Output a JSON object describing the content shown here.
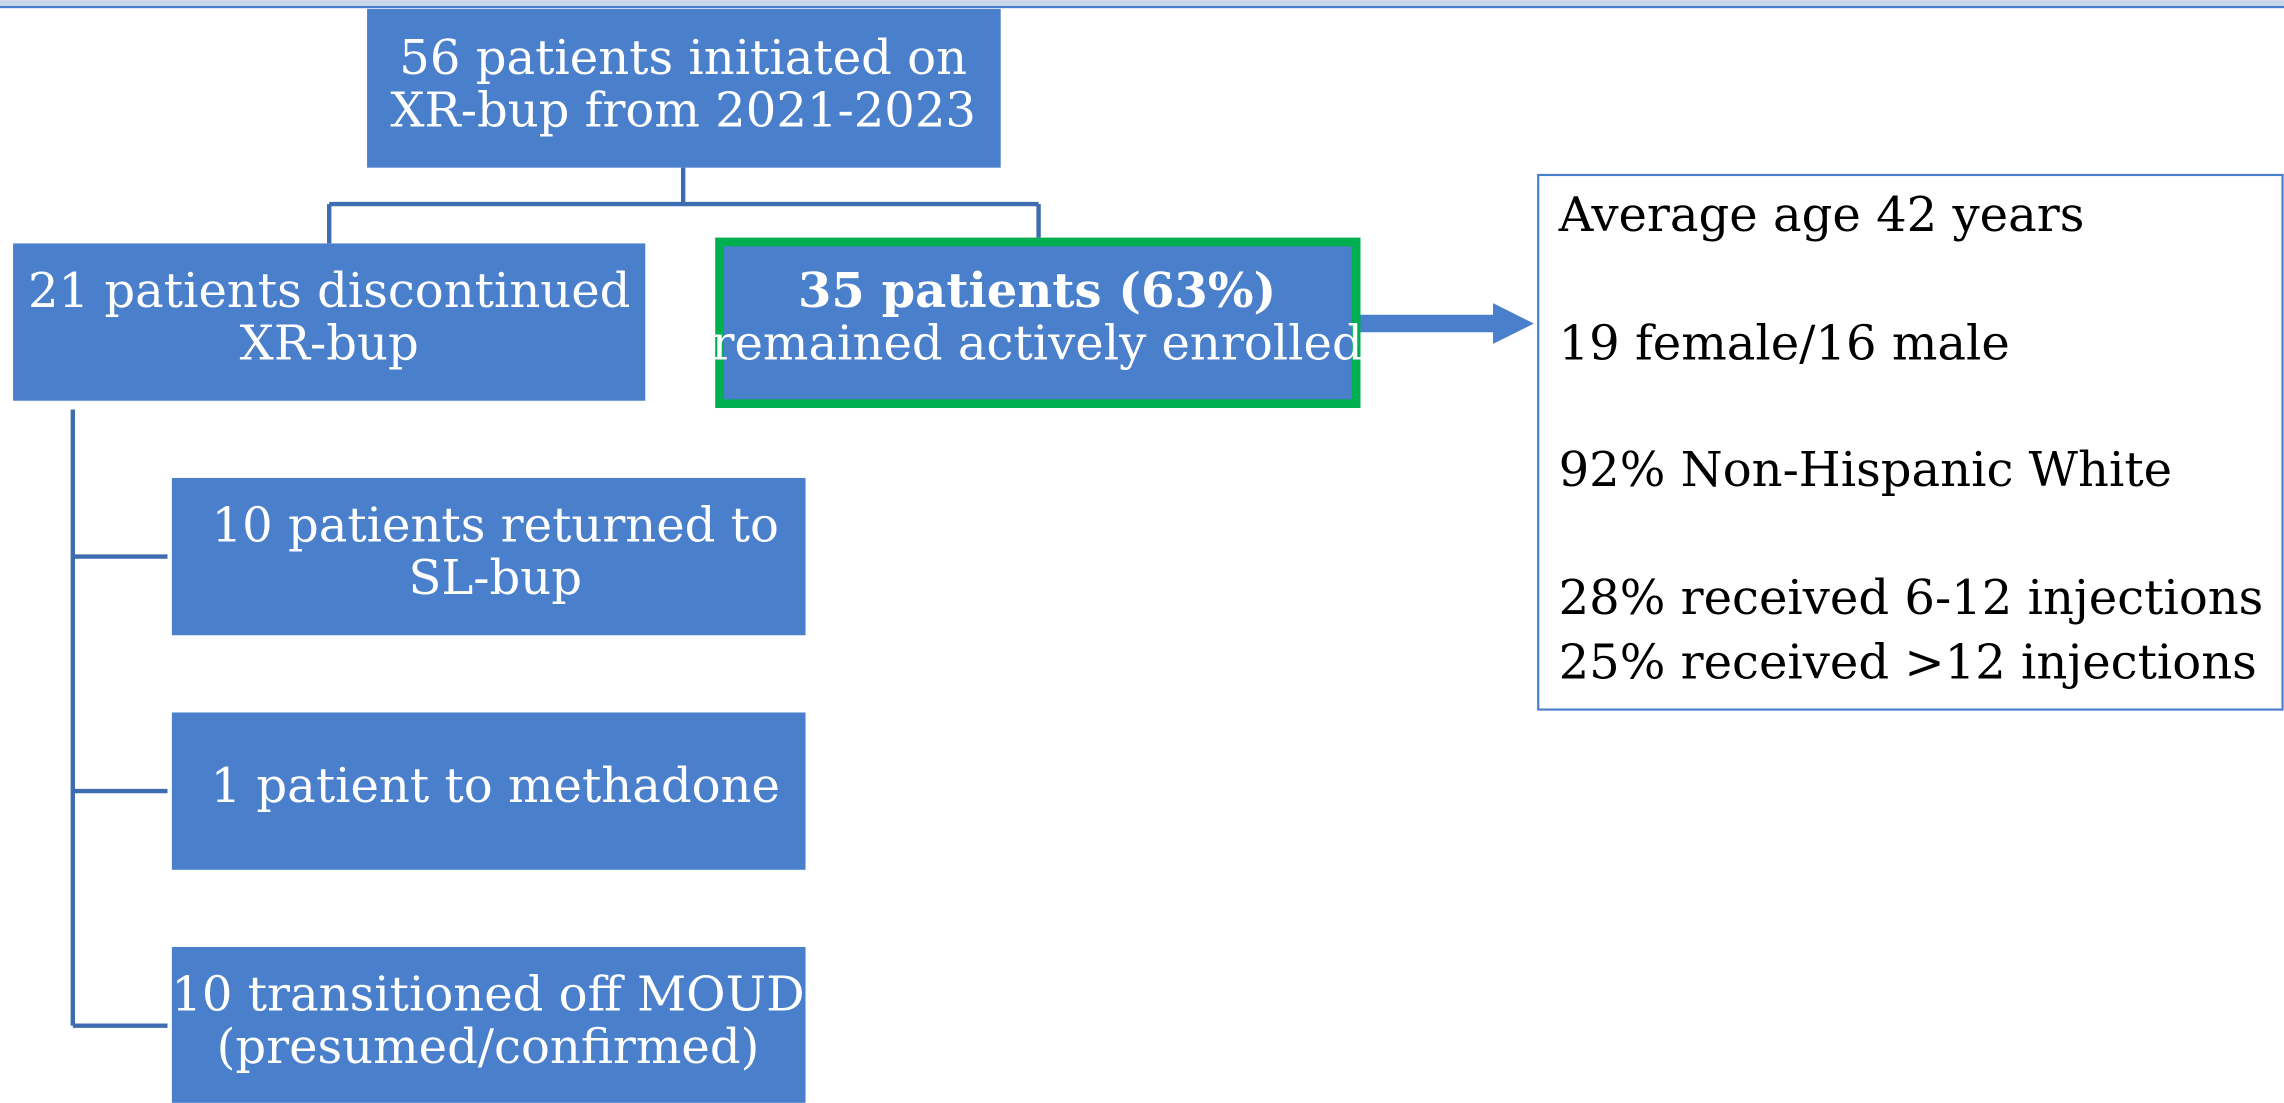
{
  "nodes": [
    {
      "lines": [
        "56 patients initiated on",
        "XR-bup from 2021-2023"
      ]
    },
    {
      "lines": [
        "21 patients discontinued",
        "XR-bup"
      ]
    },
    {
      "lines": [
        "35 patients (63%)",
        "remained actively enrolled"
      ]
    },
    {
      "lines": [
        "10 patients returned to",
        "SL-bup"
      ]
    },
    {
      "lines": [
        "1 patient to methadone"
      ]
    },
    {
      "lines": [
        "10 transitioned off MOUD",
        "(presumed/confirmed)"
      ]
    }
  ],
  "info": {
    "lines": [
      "Average age 42 years",
      "19 female/16 male",
      "92% Non-Hispanic White",
      "28% received 6-12 injections",
      "25% received >12 injections"
    ]
  }
}
